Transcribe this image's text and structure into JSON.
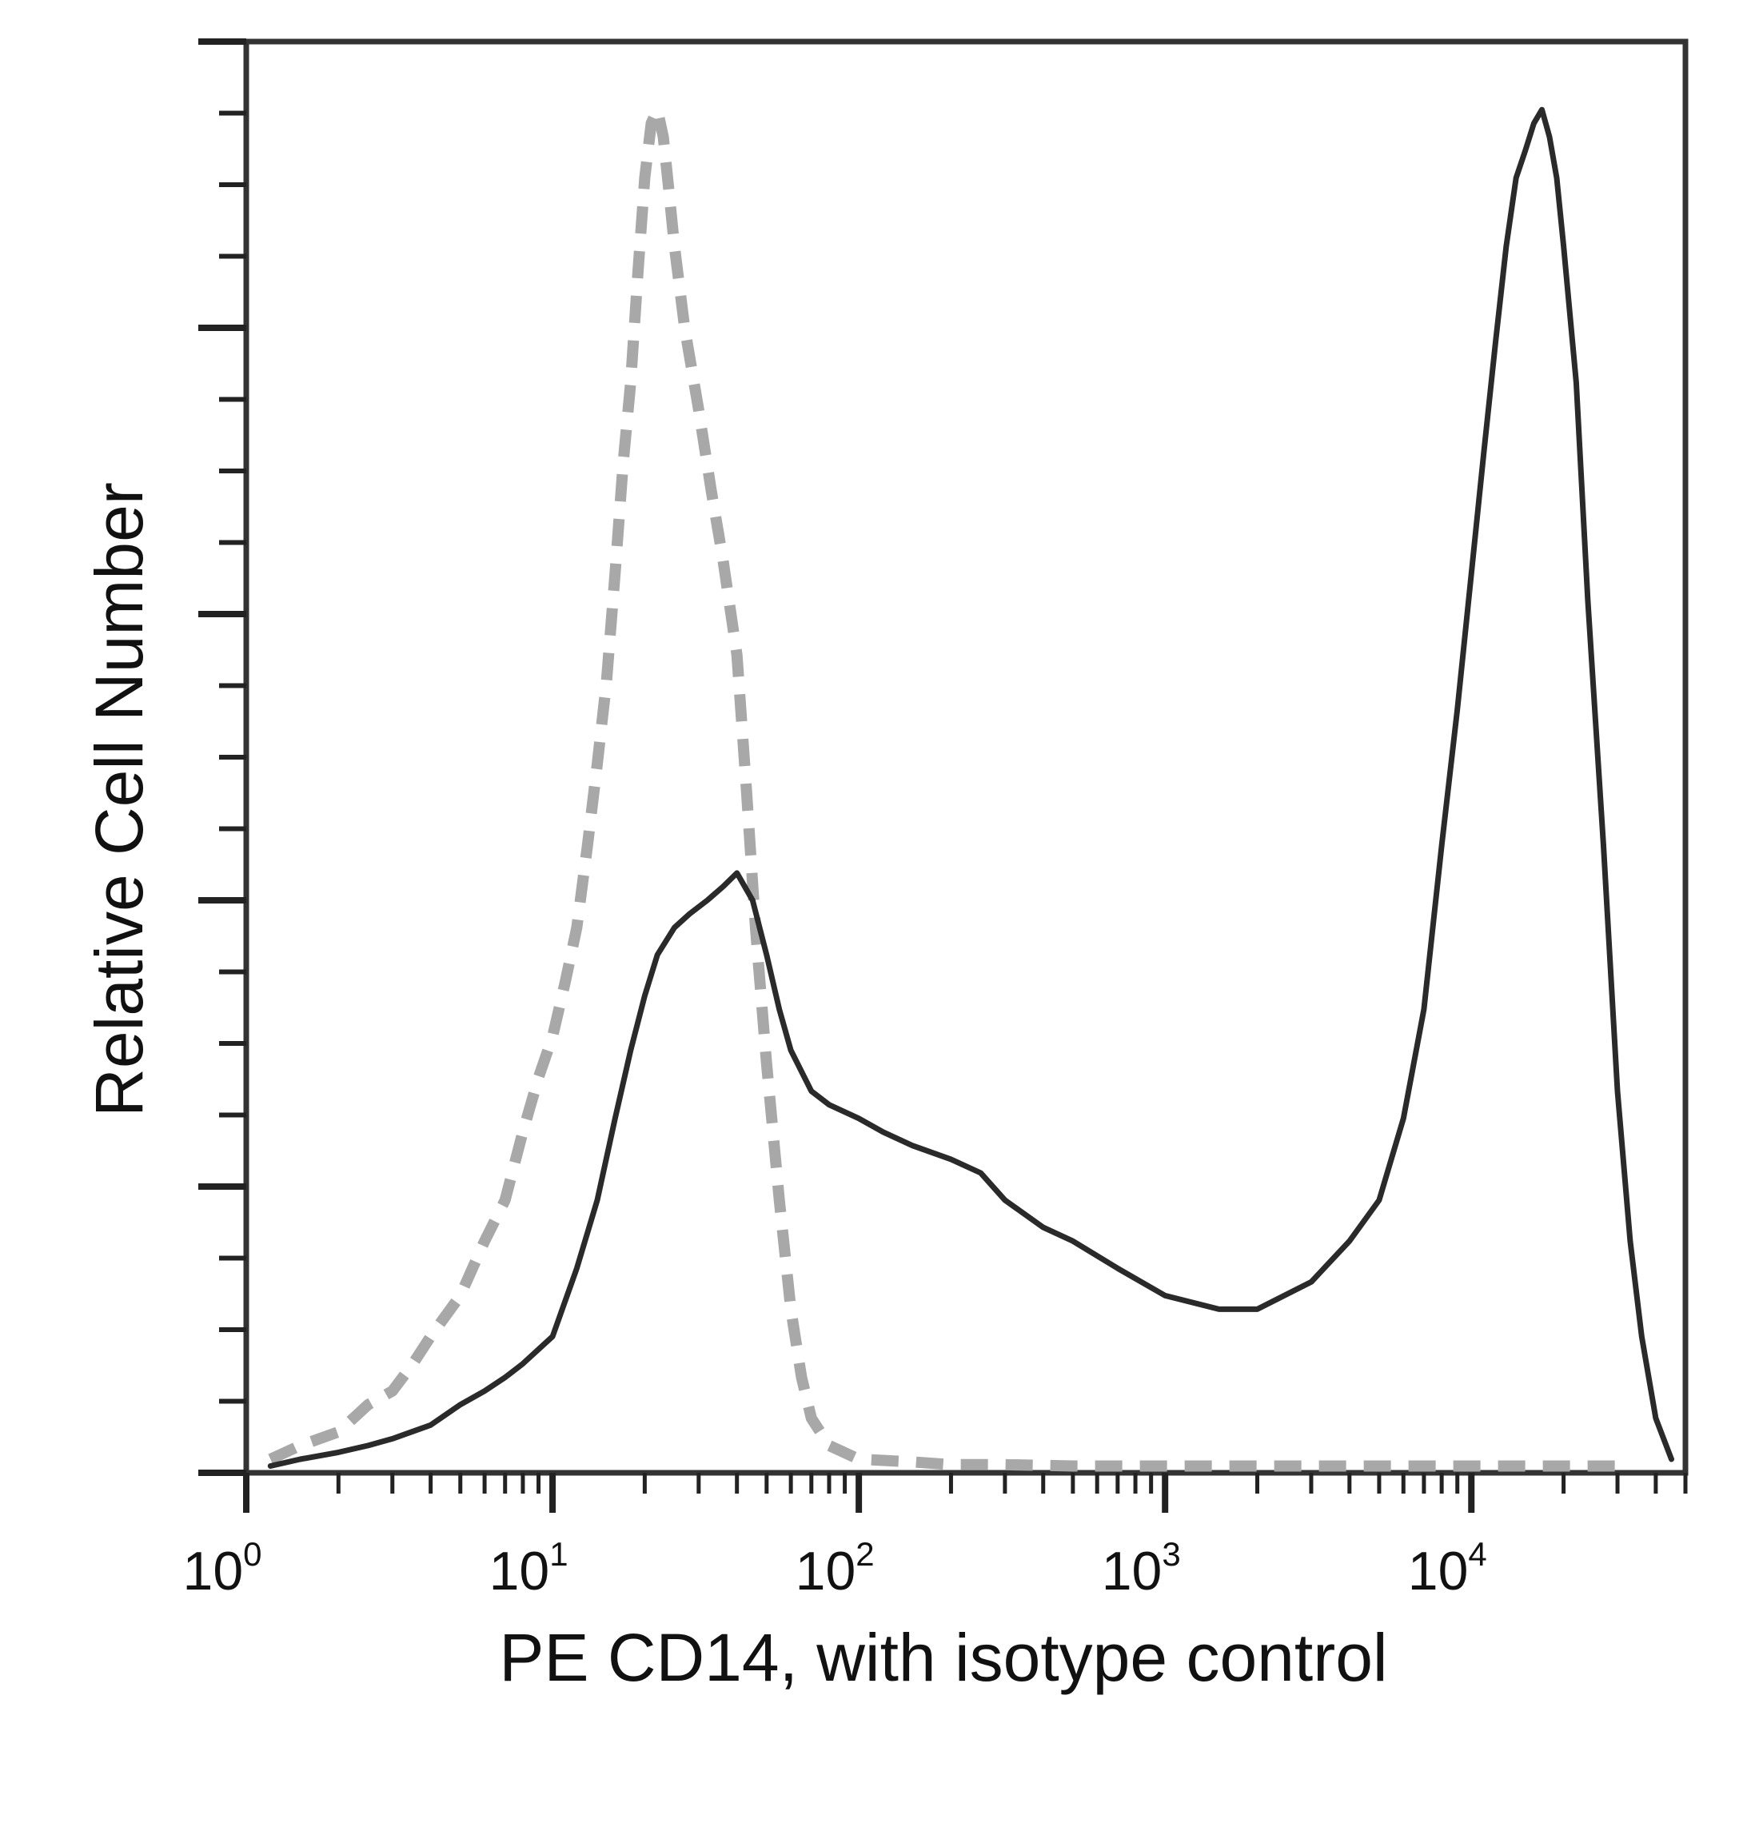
{
  "chart_data": {
    "type": "line",
    "title": "",
    "xlabel": "PE CD14, with isotype control",
    "ylabel": "Relative Cell Number",
    "x_scale": "log",
    "xlim": [
      1,
      50000
    ],
    "ylim": [
      0,
      1.05
    ],
    "x_ticks": [
      {
        "value": 1,
        "base": "10",
        "exp": "0"
      },
      {
        "value": 10,
        "base": "10",
        "exp": "1"
      },
      {
        "value": 100,
        "base": "10",
        "exp": "2"
      },
      {
        "value": 1000,
        "base": "10",
        "exp": "3"
      },
      {
        "value": 10000,
        "base": "10",
        "exp": "4"
      }
    ],
    "grid": false,
    "legend": "none",
    "series": [
      {
        "style": "dashed",
        "color": "#a8a8a8",
        "x": [
          1.2,
          1.5,
          2,
          2.5,
          3,
          3.5,
          4,
          5,
          6,
          7,
          8,
          9,
          10,
          11,
          12,
          13,
          14,
          15,
          16,
          17,
          18,
          19,
          20,
          21,
          22,
          23,
          24,
          25,
          27,
          30,
          33,
          36,
          40,
          43,
          46,
          50,
          55,
          60,
          65,
          70,
          80,
          100,
          150,
          200,
          300,
          500,
          800,
          1000,
          2000,
          5000,
          10000,
          20000,
          30000
        ],
        "y": [
          0.01,
          0.02,
          0.03,
          0.05,
          0.06,
          0.08,
          0.1,
          0.13,
          0.17,
          0.2,
          0.25,
          0.29,
          0.32,
          0.36,
          0.4,
          0.46,
          0.52,
          0.58,
          0.66,
          0.74,
          0.8,
          0.88,
          0.95,
          0.99,
          1.0,
          0.98,
          0.94,
          0.9,
          0.84,
          0.78,
          0.72,
          0.67,
          0.6,
          0.5,
          0.4,
          0.3,
          0.2,
          0.12,
          0.07,
          0.04,
          0.02,
          0.01,
          0.008,
          0.006,
          0.006,
          0.005,
          0.005,
          0.005,
          0.005,
          0.005,
          0.005,
          0.005,
          0.005
        ]
      },
      {
        "style": "solid",
        "color": "#2a2a2a",
        "x": [
          1.2,
          1.5,
          2,
          2.5,
          3,
          4,
          5,
          6,
          7,
          8,
          10,
          12,
          14,
          16,
          18,
          20,
          22,
          25,
          28,
          32,
          36,
          40,
          45,
          50,
          55,
          60,
          70,
          80,
          100,
          120,
          150,
          200,
          250,
          300,
          400,
          500,
          700,
          1000,
          1500,
          2000,
          3000,
          4000,
          5000,
          6000,
          7000,
          8000,
          9000,
          10000,
          11000,
          12000,
          13000,
          14000,
          15000,
          16000,
          17000,
          18000,
          19000,
          20000,
          22000,
          24000,
          27000,
          30000,
          33000,
          36000,
          40000,
          45000
        ],
        "y": [
          0.005,
          0.01,
          0.015,
          0.02,
          0.025,
          0.035,
          0.05,
          0.06,
          0.07,
          0.08,
          0.1,
          0.15,
          0.2,
          0.26,
          0.31,
          0.35,
          0.38,
          0.4,
          0.41,
          0.42,
          0.43,
          0.44,
          0.42,
          0.38,
          0.34,
          0.31,
          0.28,
          0.27,
          0.26,
          0.25,
          0.24,
          0.23,
          0.22,
          0.2,
          0.18,
          0.17,
          0.15,
          0.13,
          0.12,
          0.12,
          0.14,
          0.17,
          0.2,
          0.26,
          0.34,
          0.46,
          0.56,
          0.66,
          0.75,
          0.83,
          0.9,
          0.95,
          0.97,
          0.99,
          1.0,
          0.98,
          0.95,
          0.9,
          0.8,
          0.64,
          0.46,
          0.28,
          0.17,
          0.1,
          0.04,
          0.01
        ]
      }
    ]
  }
}
